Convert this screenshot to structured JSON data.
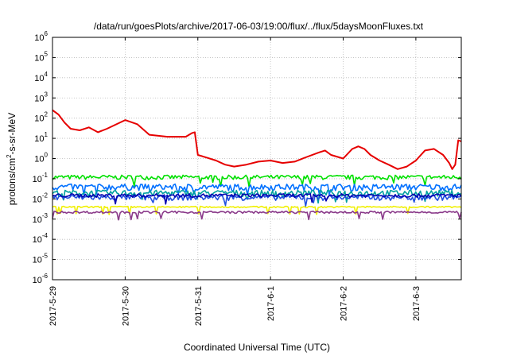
{
  "chart_data": {
    "type": "line",
    "title": "/data/run/goesPlots/archive/2017-06-03/19:00/flux/../flux/5daysMoonFluxes.txt",
    "xlabel": "Coordinated Universal Time (UTC)",
    "ylabel": {
      "prefix": "protons/cm",
      "sup": "2",
      "suffix": "-s-sr-MeV"
    },
    "x_scale": "time",
    "x_range": [
      "2017-05-29T00:00",
      "2017-06-03T15:00"
    ],
    "x_ticks": [
      "2017-5-29",
      "2017-5-30",
      "2017-5-31",
      "2017-6-1",
      "2017-6-2",
      "2017-6-3"
    ],
    "y_scale": "log",
    "ylim": [
      1e-06,
      1000000.0
    ],
    "y_ticks": [
      {
        "base": "10",
        "exp": "6"
      },
      {
        "base": "10",
        "exp": "5"
      },
      {
        "base": "10",
        "exp": "4"
      },
      {
        "base": "10",
        "exp": "3"
      },
      {
        "base": "10",
        "exp": "2"
      },
      {
        "base": "10",
        "exp": "1"
      },
      {
        "base": "10",
        "exp": "0"
      },
      {
        "base": "10",
        "exp": "-1"
      },
      {
        "base": "10",
        "exp": "-2"
      },
      {
        "base": "10",
        "exp": "-3"
      },
      {
        "base": "10",
        "exp": "-4"
      },
      {
        "base": "10",
        "exp": "-5"
      },
      {
        "base": "10",
        "exp": "-6"
      }
    ],
    "grid": true,
    "series": [
      {
        "color": "#e60000",
        "points": [
          [
            "2017-05-29T00:00",
            250
          ],
          [
            "2017-05-29T02:00",
            150
          ],
          [
            "2017-05-29T04:00",
            60
          ],
          [
            "2017-05-29T06:00",
            30
          ],
          [
            "2017-05-29T09:00",
            25
          ],
          [
            "2017-05-29T12:00",
            35
          ],
          [
            "2017-05-29T15:00",
            20
          ],
          [
            "2017-05-29T18:00",
            30
          ],
          [
            "2017-05-30T00:00",
            80
          ],
          [
            "2017-05-30T04:00",
            50
          ],
          [
            "2017-05-30T08:00",
            15
          ],
          [
            "2017-05-30T14:00",
            12
          ],
          [
            "2017-05-30T20:00",
            12
          ],
          [
            "2017-05-30T22:00",
            18
          ],
          [
            "2017-05-30T23:00",
            20
          ],
          [
            "2017-05-31T00:00",
            1.5
          ],
          [
            "2017-05-31T03:00",
            1.1
          ],
          [
            "2017-05-31T06:00",
            0.8
          ],
          [
            "2017-05-31T09:00",
            0.5
          ],
          [
            "2017-05-31T12:00",
            0.4
          ],
          [
            "2017-05-31T16:00",
            0.5
          ],
          [
            "2017-05-31T20:00",
            0.7
          ],
          [
            "2017-06-01T00:00",
            0.8
          ],
          [
            "2017-06-01T04:00",
            0.6
          ],
          [
            "2017-06-01T08:00",
            0.7
          ],
          [
            "2017-06-01T12:00",
            1.2
          ],
          [
            "2017-06-01T16:00",
            2.0
          ],
          [
            "2017-06-01T18:00",
            2.5
          ],
          [
            "2017-06-01T20:00",
            1.5
          ],
          [
            "2017-06-02T00:00",
            1.0
          ],
          [
            "2017-06-02T03:00",
            3.0
          ],
          [
            "2017-06-02T05:00",
            4.0
          ],
          [
            "2017-06-02T07:00",
            3.0
          ],
          [
            "2017-06-02T09:00",
            1.5
          ],
          [
            "2017-06-02T12:00",
            0.8
          ],
          [
            "2017-06-02T15:00",
            0.5
          ],
          [
            "2017-06-02T18:00",
            0.3
          ],
          [
            "2017-06-02T21:00",
            0.4
          ],
          [
            "2017-06-03T00:00",
            0.8
          ],
          [
            "2017-06-03T03:00",
            2.5
          ],
          [
            "2017-06-03T06:00",
            3.0
          ],
          [
            "2017-06-03T09:00",
            1.5
          ],
          [
            "2017-06-03T11:00",
            0.6
          ],
          [
            "2017-06-03T12:00",
            0.3
          ],
          [
            "2017-06-03T13:00",
            0.5
          ],
          [
            "2017-06-03T14:00",
            8.0
          ],
          [
            "2017-06-03T15:00",
            7.0
          ]
        ]
      },
      {
        "color": "#00e000",
        "level": 0.12,
        "noise": 0.25
      },
      {
        "color": "#0070ff",
        "level": 0.04,
        "noise": 0.35
      },
      {
        "color": "#00a0a0",
        "level": 0.02,
        "noise": 0.35
      },
      {
        "color": "#2050e0",
        "level": 0.012,
        "noise": 0.3
      },
      {
        "color": "#0000b0",
        "level": 0.015,
        "noise": 0.2
      },
      {
        "color": "#f0f000",
        "level": 0.004,
        "noise": 0.08
      },
      {
        "color": "#8a3a8a",
        "level": 0.0022,
        "noise": 0.12
      }
    ]
  }
}
